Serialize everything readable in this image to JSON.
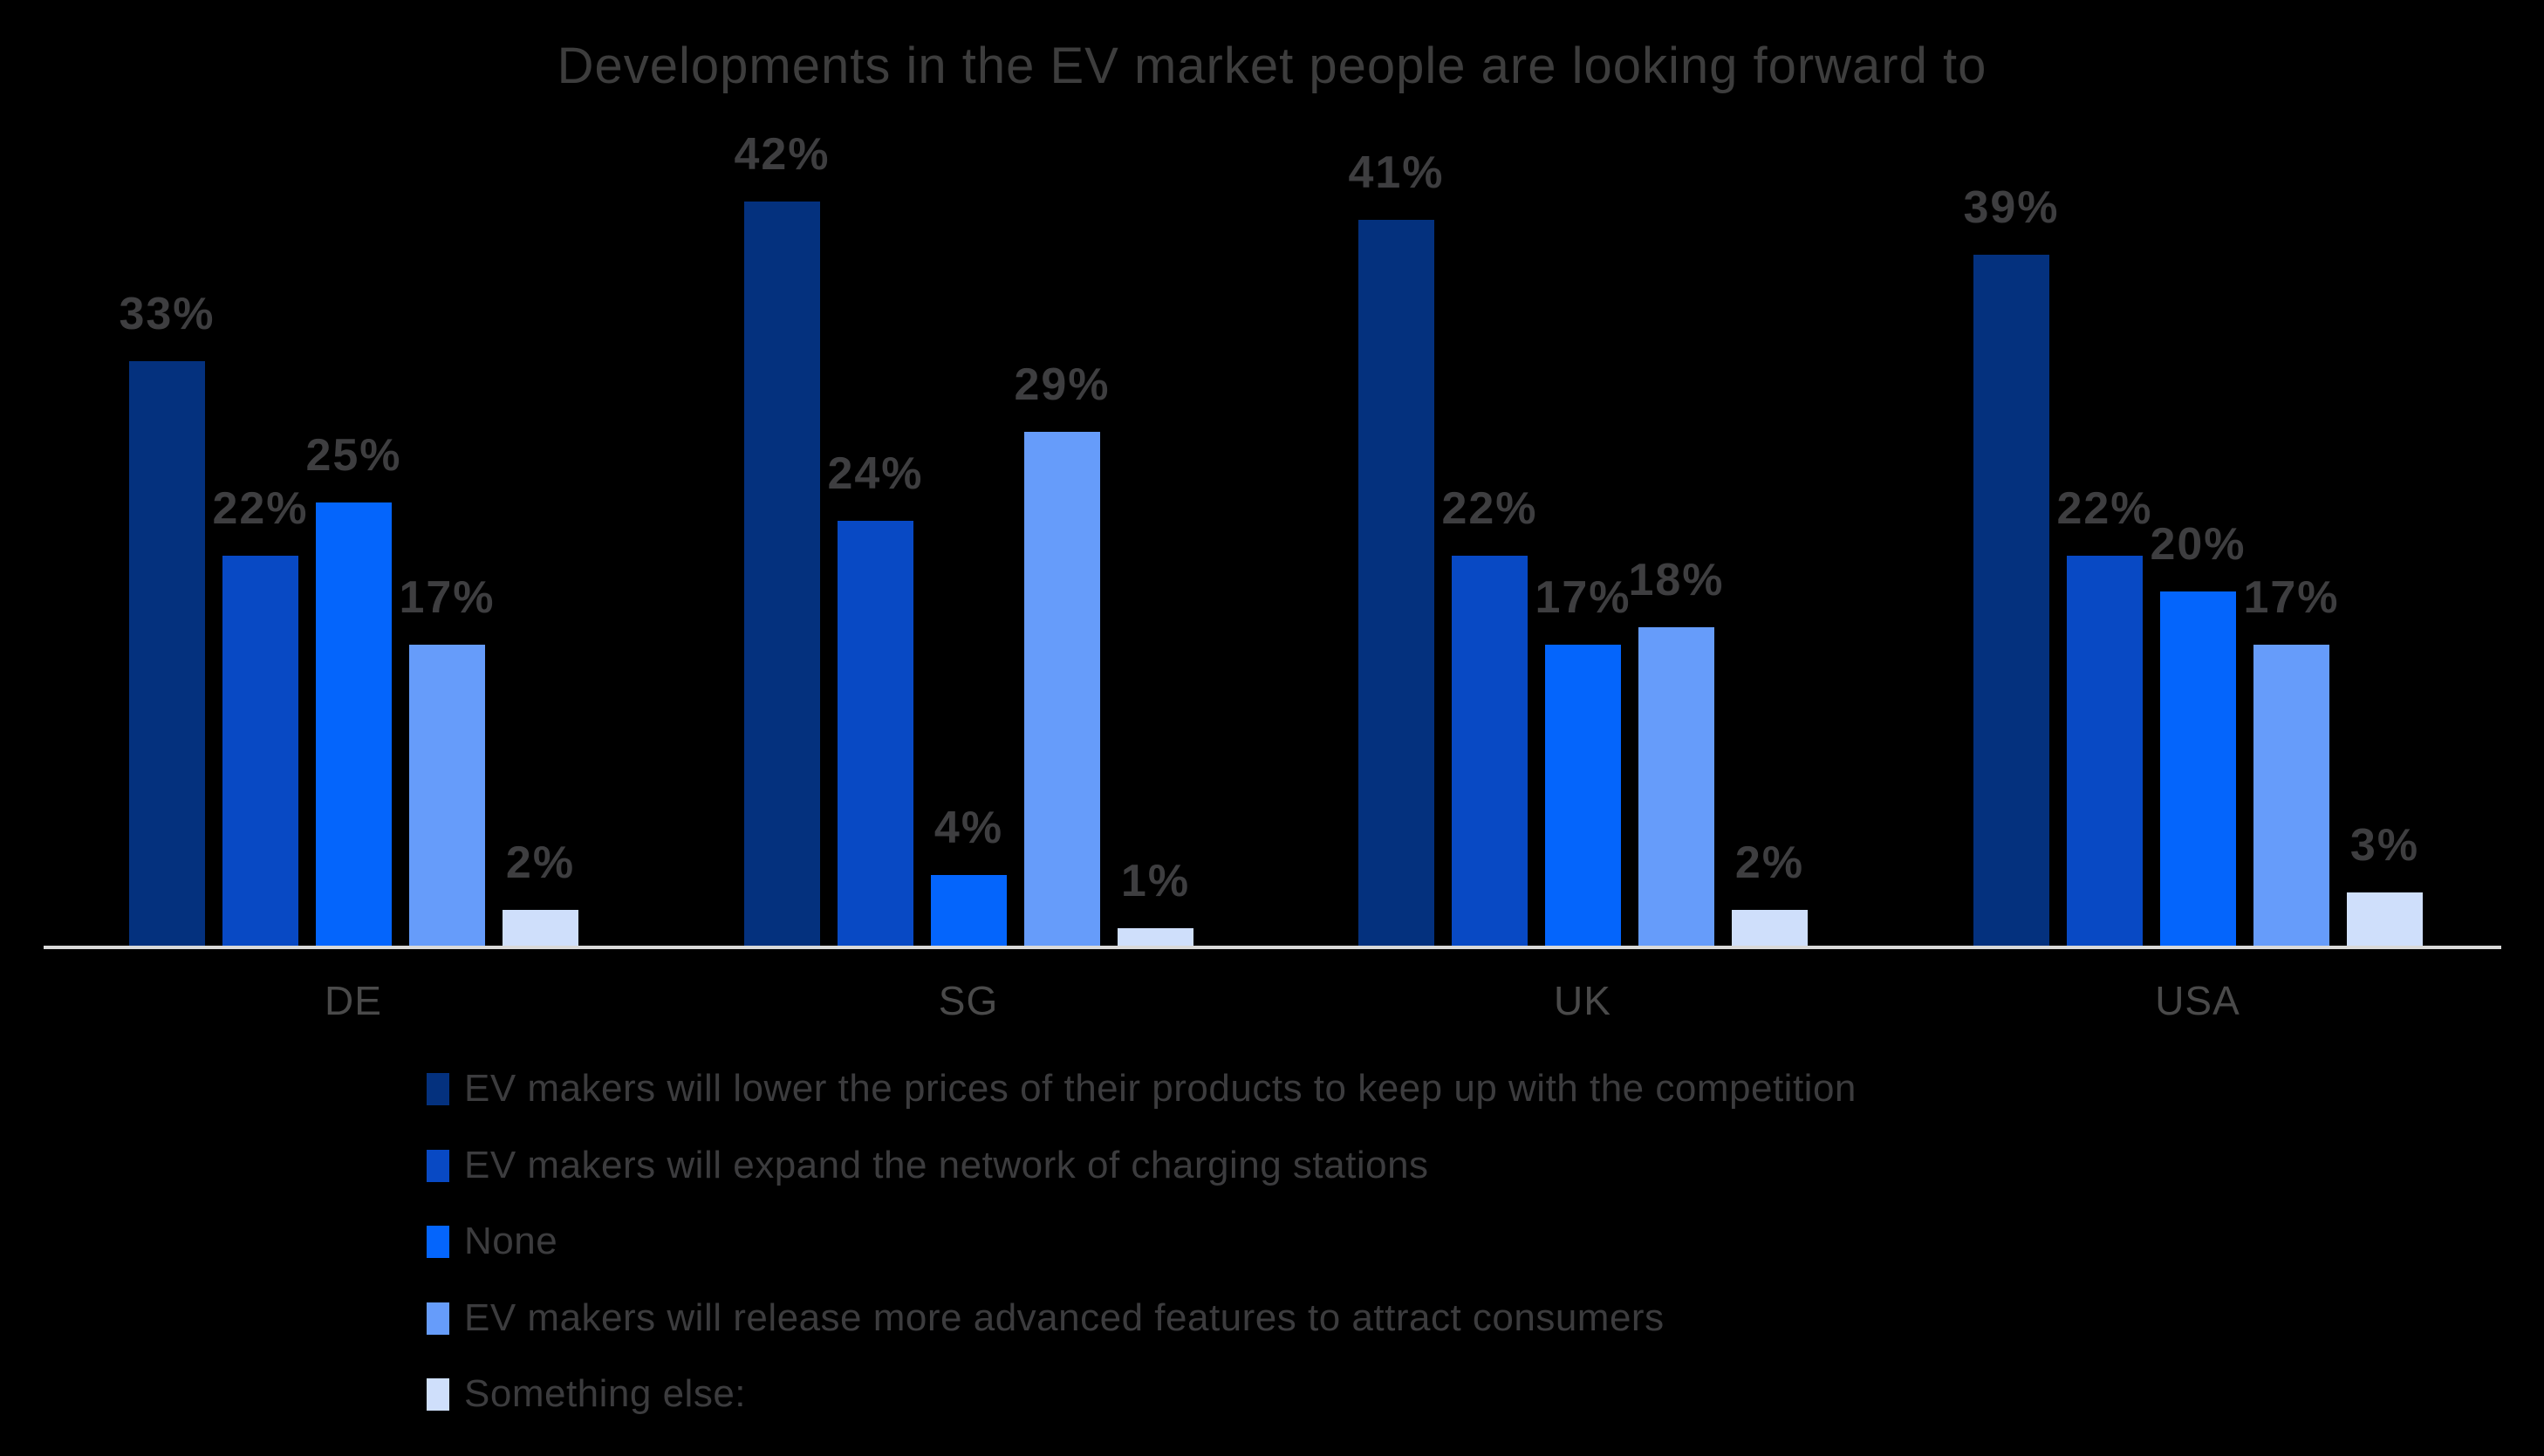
{
  "title": "Developments in the EV market people are looking forward to",
  "chart_data": {
    "type": "bar",
    "categories": [
      "DE",
      "SG",
      "UK",
      "USA"
    ],
    "series": [
      {
        "name": "EV makers will lower the prices of their products to keep up with the competition",
        "color": "#04317E",
        "values": [
          33,
          42,
          41,
          39
        ]
      },
      {
        "name": "EV makers will expand the network of charging stations",
        "color": "#0849C4",
        "values": [
          22,
          24,
          22,
          22
        ]
      },
      {
        "name": "None",
        "color": "#0465FC",
        "values": [
          25,
          4,
          17,
          20
        ]
      },
      {
        "name": "EV makers will release more advanced features to attract consumers",
        "color": "#669CFA",
        "values": [
          17,
          29,
          18,
          17
        ]
      },
      {
        "name": "Something else:",
        "color": "#CFDFFB",
        "values": [
          2,
          1,
          2,
          3
        ]
      }
    ],
    "value_suffix": "%",
    "data_labels": true,
    "ylim": [
      0,
      45
    ],
    "grid": false,
    "legend_position": "bottom-left",
    "x_axis_line": true
  },
  "colors": {
    "background": "#000000",
    "title_text": "#3D3D3D",
    "value_label_text": "#3E3E40",
    "axis_label_text": "#4A4A4A",
    "legend_text": "#3C3C3E",
    "axis_line": "#D9D9D9"
  }
}
